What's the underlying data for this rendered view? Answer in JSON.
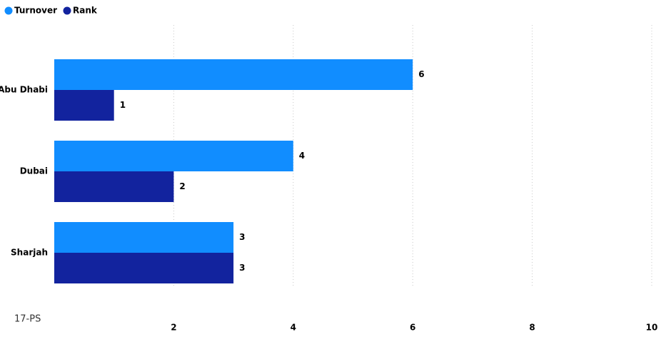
{
  "chart_data": {
    "type": "bar",
    "orientation": "horizontal",
    "categories": [
      "Abu Dhabi",
      "Dubai",
      "Sharjah"
    ],
    "series": [
      {
        "name": "Turnover",
        "color": "#118dff",
        "values": [
          6,
          4,
          3
        ]
      },
      {
        "name": "Rank",
        "color": "#12239e",
        "values": [
          1,
          2,
          3
        ]
      }
    ],
    "xlim": [
      0,
      10
    ],
    "xticks": [
      2,
      4,
      6,
      8,
      10
    ],
    "grid": true,
    "legend": "top-left",
    "annotation": "17-PS"
  }
}
